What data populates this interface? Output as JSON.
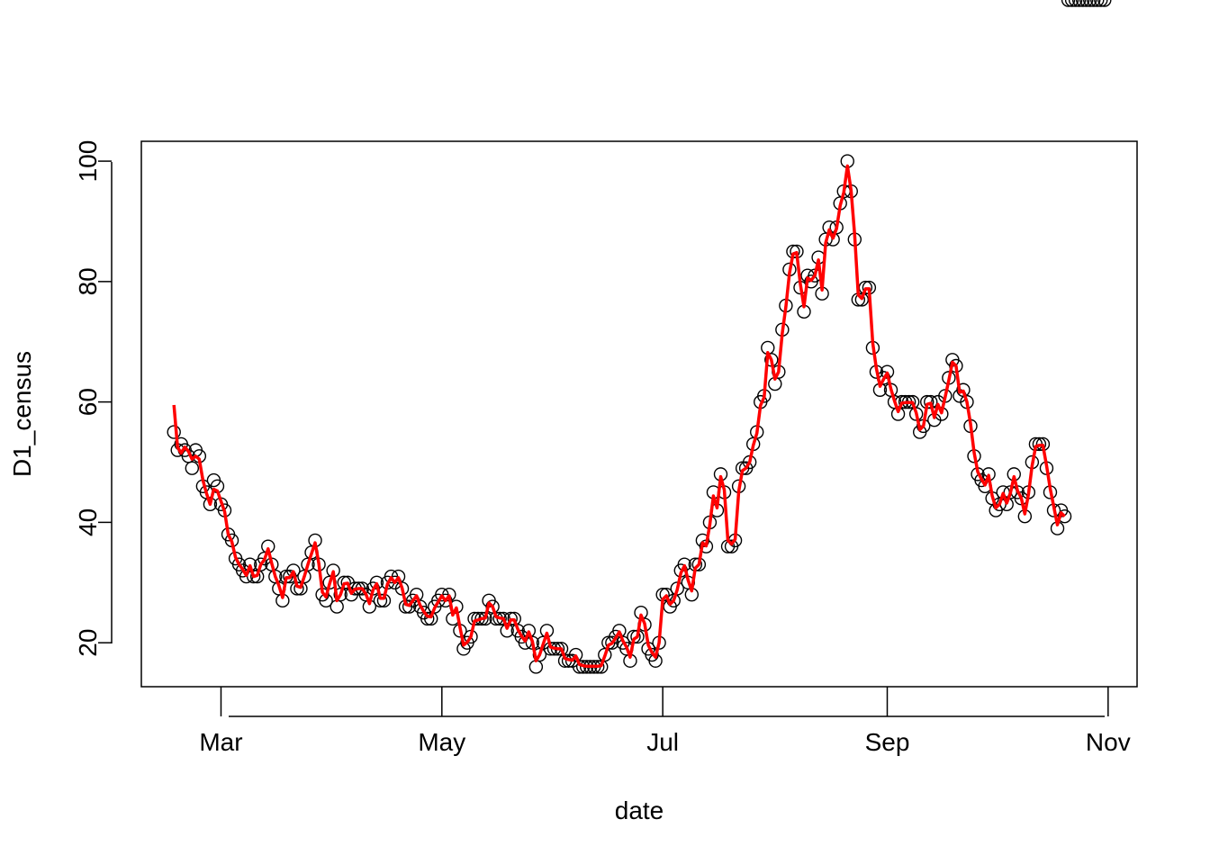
{
  "chart_data": {
    "type": "scatter",
    "xlabel": "date",
    "ylabel": "D1_census",
    "x_ticks": [
      "Mar",
      "May",
      "Jul",
      "Sep",
      "Nov"
    ],
    "y_ticks": [
      20,
      40,
      60,
      80,
      100
    ],
    "xlim": [
      "2020-02-08",
      "2020-11-09"
    ],
    "ylim": [
      12.7,
      103.3
    ],
    "grid": false,
    "legend": "none",
    "colors": {
      "points": "#000000",
      "smooth_line": "#ff0000",
      "frame": "#000000"
    },
    "x": [
      "2020-02-17",
      "2020-02-18",
      "2020-02-19",
      "2020-02-20",
      "2020-02-21",
      "2020-02-22",
      "2020-02-23",
      "2020-02-24",
      "2020-02-25",
      "2020-02-26",
      "2020-02-27",
      "2020-02-28",
      "2020-02-29",
      "2020-03-01",
      "2020-03-02",
      "2020-03-03",
      "2020-03-04",
      "2020-03-05",
      "2020-03-06",
      "2020-03-07",
      "2020-03-08",
      "2020-03-09",
      "2020-03-10",
      "2020-03-11",
      "2020-03-12",
      "2020-03-13",
      "2020-03-14",
      "2020-03-15",
      "2020-03-16",
      "2020-03-17",
      "2020-03-18",
      "2020-03-19",
      "2020-03-20",
      "2020-03-21",
      "2020-03-22",
      "2020-03-23",
      "2020-03-24",
      "2020-03-25",
      "2020-03-26",
      "2020-03-27",
      "2020-03-28",
      "2020-03-29",
      "2020-03-30",
      "2020-03-31",
      "2020-04-01",
      "2020-04-02",
      "2020-04-03",
      "2020-04-04",
      "2020-04-05",
      "2020-04-06",
      "2020-04-07",
      "2020-04-08",
      "2020-04-09",
      "2020-04-10",
      "2020-04-11",
      "2020-04-12",
      "2020-04-13",
      "2020-04-14",
      "2020-04-15",
      "2020-04-16",
      "2020-04-17",
      "2020-04-18",
      "2020-04-19",
      "2020-04-20",
      "2020-04-21",
      "2020-04-22",
      "2020-04-23",
      "2020-04-24",
      "2020-04-25",
      "2020-04-26",
      "2020-04-27",
      "2020-04-28",
      "2020-04-29",
      "2020-04-30",
      "2020-05-01",
      "2020-05-02",
      "2020-05-03",
      "2020-05-04",
      "2020-05-05",
      "2020-05-06",
      "2020-05-07",
      "2020-05-08",
      "2020-05-09",
      "2020-05-10",
      "2020-05-11",
      "2020-05-12",
      "2020-05-13",
      "2020-05-14",
      "2020-05-15",
      "2020-05-16",
      "2020-05-17",
      "2020-05-18",
      "2020-05-19",
      "2020-05-20",
      "2020-05-21",
      "2020-05-22",
      "2020-05-23",
      "2020-05-24",
      "2020-05-25",
      "2020-05-26",
      "2020-05-27",
      "2020-05-28",
      "2020-05-29",
      "2020-05-30",
      "2020-05-31",
      "2020-06-01",
      "2020-06-02",
      "2020-06-03",
      "2020-06-04",
      "2020-06-05",
      "2020-06-06",
      "2020-06-07",
      "2020-06-08",
      "2020-06-09",
      "2020-06-10",
      "2020-06-11",
      "2020-06-12",
      "2020-06-13",
      "2020-06-14",
      "2020-06-15",
      "2020-06-16",
      "2020-06-17",
      "2020-06-18",
      "2020-06-19",
      "2020-06-20",
      "2020-06-21",
      "2020-06-22",
      "2020-06-23",
      "2020-06-24",
      "2020-06-25",
      "2020-06-26",
      "2020-06-27",
      "2020-06-28",
      "2020-06-29",
      "2020-06-30",
      "2020-07-01",
      "2020-07-02",
      "2020-07-03",
      "2020-07-04",
      "2020-07-05",
      "2020-07-06",
      "2020-07-07",
      "2020-07-08",
      "2020-07-09",
      "2020-07-10",
      "2020-07-11",
      "2020-07-12",
      "2020-07-13",
      "2020-07-14",
      "2020-07-15",
      "2020-07-16",
      "2020-07-17",
      "2020-07-18",
      "2020-07-19",
      "2020-07-20",
      "2020-07-21",
      "2020-07-22",
      "2020-07-23",
      "2020-07-24",
      "2020-07-25",
      "2020-07-26",
      "2020-07-27",
      "2020-07-28",
      "2020-07-29",
      "2020-07-30",
      "2020-07-31",
      "2020-08-01",
      "2020-08-02",
      "2020-08-03",
      "2020-08-04",
      "2020-08-05",
      "2020-08-06",
      "2020-08-07",
      "2020-08-08",
      "2020-08-09",
      "2020-08-10",
      "2020-08-11",
      "2020-08-12",
      "2020-08-13",
      "2020-08-14",
      "2020-08-15",
      "2020-08-16",
      "2020-08-17",
      "2020-08-18",
      "2020-08-19",
      "2020-08-20",
      "2020-08-21",
      "2020-08-22",
      "2020-08-23",
      "2020-08-24",
      "2020-08-25",
      "2020-08-26",
      "2020-08-27",
      "2020-08-28",
      "2020-08-29",
      "2020-08-30",
      "2020-08-31",
      "2020-09-01",
      "2020-09-02",
      "2020-09-03",
      "2020-09-04",
      "2020-09-05",
      "2020-09-06",
      "2020-09-07",
      "2020-09-08",
      "2020-09-09",
      "2020-09-10",
      "2020-09-11",
      "2020-09-12",
      "2020-09-13",
      "2020-09-14",
      "2020-09-15",
      "2020-09-16",
      "2020-09-17",
      "2020-09-18",
      "2020-09-19",
      "2020-09-20",
      "2020-09-21",
      "2020-09-22",
      "2020-09-23",
      "2020-09-24",
      "2020-09-25",
      "2020-09-26",
      "2020-09-27",
      "2020-09-28",
      "2020-09-29",
      "2020-09-30",
      "2020-10-01",
      "2020-10-02",
      "2020-10-03",
      "2020-10-04",
      "2020-10-05",
      "2020-10-06",
      "2020-10-07",
      "2020-10-08",
      "2020-10-09",
      "2020-10-10",
      "2020-10-11",
      "2020-10-12",
      "2020-10-13",
      "2020-10-14",
      "2020-10-15",
      "2020-10-16",
      "2020-10-17",
      "2020-10-18",
      "2020-10-19",
      "2020-10-20",
      "2020-10-21",
      "2020-10-22",
      "2020-10-23",
      "2020-10-24",
      "2020-10-25",
      "2020-10-26",
      "2020-10-27",
      "2020-10-28",
      "2020-10-29",
      "2020-10-30",
      "2020-10-31"
    ],
    "series": [
      {
        "role": "points",
        "values": [
          55,
          52,
          53,
          52,
          51,
          49,
          52,
          51,
          46,
          45,
          43,
          47,
          46,
          43,
          42,
          38,
          37,
          34,
          33,
          32,
          31,
          33,
          31,
          31,
          33,
          34,
          36,
          33,
          31,
          29,
          27,
          31,
          31,
          32,
          29,
          29,
          31,
          33,
          35,
          37,
          33,
          28,
          27,
          30,
          32,
          26,
          28,
          30,
          30,
          28,
          29,
          29,
          29,
          28,
          26,
          29,
          30,
          27,
          27,
          30,
          31,
          30,
          31,
          29,
          26,
          26,
          27,
          28,
          26,
          25,
          24,
          24,
          26,
          27,
          28,
          27,
          28,
          24,
          26,
          22,
          19,
          20,
          21,
          24,
          24,
          24,
          24,
          27,
          26,
          24,
          24,
          24,
          22,
          24,
          24,
          22,
          21,
          20,
          22,
          20,
          16,
          18,
          20,
          22,
          19,
          19,
          19,
          19,
          17,
          17,
          17,
          18,
          16,
          16,
          16,
          16,
          16,
          16,
          16,
          18,
          20,
          20,
          21,
          22,
          20,
          19,
          17,
          21,
          21,
          25,
          23,
          19,
          18,
          17,
          20,
          28,
          28,
          26,
          27,
          29,
          32,
          33,
          30,
          28,
          33,
          33,
          37,
          36,
          40,
          45,
          42,
          48,
          45,
          36,
          36,
          37,
          46,
          49,
          49,
          50,
          53,
          55,
          60,
          61,
          69,
          67,
          63,
          65,
          72,
          76,
          82,
          85,
          85,
          79,
          75,
          81,
          80,
          81,
          84,
          78,
          87,
          89,
          87,
          89,
          93,
          95,
          100,
          95,
          87,
          77,
          77,
          79,
          79,
          69,
          65,
          62,
          64,
          65,
          62,
          60,
          58,
          60,
          60,
          60,
          60,
          58,
          55,
          56,
          60,
          60,
          57,
          60,
          58,
          61,
          64,
          67,
          66,
          61,
          62,
          60,
          56,
          51,
          48,
          47,
          46,
          48,
          44,
          42,
          43,
          45,
          43,
          45,
          48,
          45,
          44,
          41,
          45,
          50,
          53,
          53,
          53,
          49,
          45,
          42,
          39,
          42,
          41
        ]
      },
      {
        "role": "smooth_line",
        "values": [
          59.5,
          52.5,
          51.5,
          52.5,
          51.8,
          50.5,
          51.0,
          50.5,
          47.0,
          44.8,
          43.0,
          45.5,
          45.2,
          43.5,
          41.8,
          38.0,
          36.8,
          34.2,
          33.0,
          32.2,
          31.2,
          32.8,
          31.0,
          31.2,
          33.0,
          33.8,
          35.6,
          33.2,
          31.0,
          29.5,
          27.5,
          30.8,
          30.8,
          31.8,
          29.4,
          29.2,
          31.0,
          33.0,
          34.8,
          36.6,
          33.2,
          28.4,
          27.6,
          29.8,
          31.8,
          27.0,
          28.0,
          29.8,
          29.9,
          28.2,
          28.9,
          29.0,
          29.0,
          28.1,
          26.5,
          28.8,
          29.8,
          27.4,
          27.4,
          29.8,
          30.8,
          30.0,
          30.8,
          29.1,
          26.4,
          26.2,
          27.0,
          27.8,
          26.2,
          25.2,
          24.4,
          24.3,
          25.8,
          26.8,
          27.8,
          27.0,
          27.8,
          24.6,
          25.8,
          22.6,
          19.6,
          20.1,
          21.0,
          23.6,
          23.8,
          24.0,
          24.1,
          26.6,
          26.0,
          24.3,
          24.1,
          24.0,
          22.4,
          23.8,
          23.8,
          22.2,
          21.1,
          20.3,
          21.8,
          20.2,
          17.0,
          18.0,
          19.8,
          21.6,
          19.3,
          19.1,
          19.0,
          19.0,
          17.4,
          17.2,
          17.1,
          17.8,
          16.4,
          16.2,
          16.1,
          16.1,
          16.1,
          16.1,
          16.2,
          17.8,
          19.6,
          19.9,
          20.8,
          21.8,
          20.3,
          19.3,
          17.6,
          20.6,
          21.0,
          24.6,
          23.2,
          19.6,
          18.4,
          17.6,
          20.0,
          27.2,
          27.8,
          26.4,
          27.0,
          28.8,
          31.6,
          32.8,
          30.4,
          28.6,
          32.4,
          33.0,
          36.6,
          36.1,
          39.6,
          44.4,
          42.4,
          47.6,
          45.4,
          37.0,
          36.4,
          37.2,
          45.2,
          48.6,
          49.0,
          50.0,
          52.8,
          54.8,
          59.4,
          60.8,
          68.2,
          67.0,
          63.8,
          65.0,
          71.4,
          75.8,
          81.4,
          84.6,
          84.8,
          79.6,
          75.8,
          80.6,
          80.2,
          81.0,
          83.6,
          78.6,
          86.4,
          88.6,
          87.2,
          88.8,
          92.6,
          94.8,
          99.2,
          95.2,
          87.8,
          77.8,
          77.2,
          78.8,
          78.8,
          69.8,
          65.6,
          62.6,
          63.8,
          64.8,
          62.2,
          60.2,
          58.4,
          59.8,
          59.9,
          59.9,
          59.9,
          58.2,
          55.4,
          56.0,
          59.6,
          59.8,
          57.4,
          59.6,
          58.2,
          60.8,
          63.6,
          66.6,
          66.0,
          61.6,
          61.8,
          60.0,
          56.4,
          51.6,
          48.4,
          47.2,
          46.2,
          47.8,
          44.4,
          42.4,
          43.0,
          44.8,
          43.2,
          44.8,
          47.6,
          45.2,
          44.1,
          41.4,
          44.6,
          49.4,
          52.6,
          52.8,
          52.8,
          49.4,
          45.6,
          42.6,
          39.6,
          41.6,
          41.0
        ]
      }
    ]
  }
}
